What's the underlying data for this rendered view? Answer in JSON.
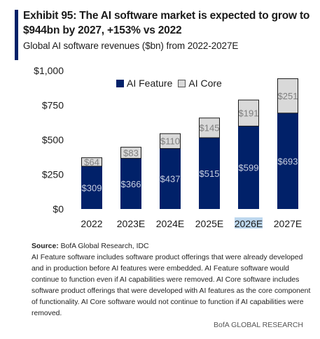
{
  "header": {
    "title": "Exhibit 95: The AI software market is expected to grow to $944bn by 2027, +153% vs 2022",
    "subtitle": "Global AI software revenues ($bn) from 2022-2027E"
  },
  "chart_data": {
    "type": "bar",
    "stacked": true,
    "categories": [
      "2022",
      "2023E",
      "2024E",
      "2025E",
      "2026E",
      "2027E"
    ],
    "series": [
      {
        "name": "AI Feature",
        "values": [
          309,
          366,
          437,
          515,
          599,
          693
        ],
        "color": "#012169"
      },
      {
        "name": "AI Core",
        "values": [
          64,
          83,
          110,
          145,
          191,
          251
        ],
        "color": "#d9d9d9"
      }
    ],
    "data_labels": {
      "AI Feature": [
        "$309",
        "$366",
        "$437",
        "$515",
        "$599",
        "$693"
      ],
      "AI Core": [
        "$64",
        "$83",
        "$110",
        "$145",
        "$191",
        "$251"
      ]
    },
    "y_ticks": [
      {
        "value": 0,
        "label": "$0"
      },
      {
        "value": 250,
        "label": "$250"
      },
      {
        "value": 500,
        "label": "$500"
      },
      {
        "value": 750,
        "label": "$750"
      },
      {
        "value": 1000,
        "label": "$1,000"
      }
    ],
    "ylim": [
      0,
      1000
    ],
    "grid": false,
    "legend_position": "top",
    "highlighted_category": "2026E",
    "highlight_color": "#bdd7ee"
  },
  "source": {
    "label": "Source:",
    "text": "BofA Global Research, IDC"
  },
  "note": "AI Feature software includes software product offerings that were already developed and in production before AI features were embedded. AI Feature software would continue to function even if AI capabilities were removed. AI Core software includes software product offerings that were developed with AI features as the core component of functionality. AI Core software would not continue to function if AI capabilities were removed.",
  "footer": "BofA GLOBAL RESEARCH"
}
